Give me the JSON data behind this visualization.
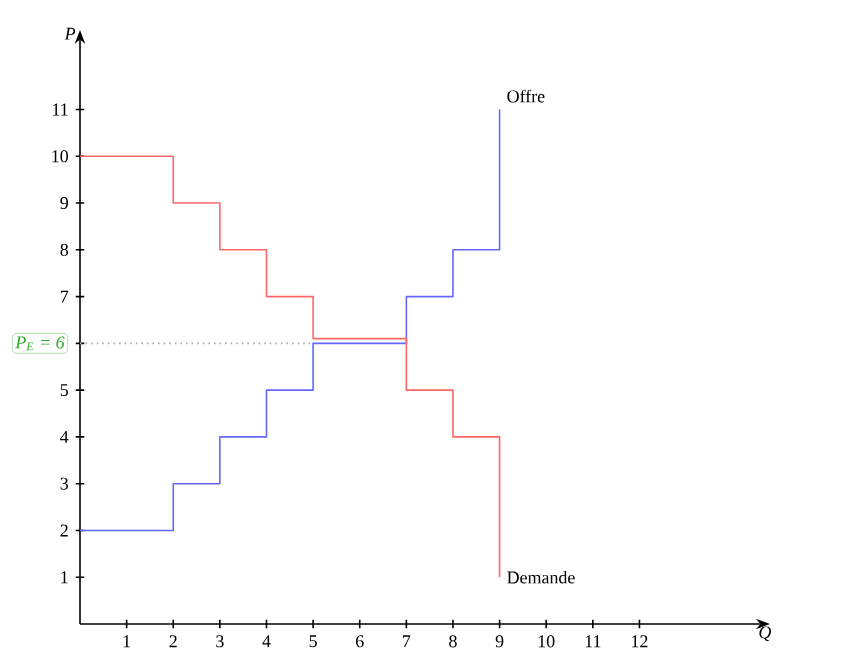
{
  "chart_data": {
    "type": "step",
    "xlabel": "Q",
    "ylabel": "P",
    "xlim": [
      0,
      14.5
    ],
    "ylim": [
      0,
      12.4
    ],
    "xticks": [
      1,
      2,
      3,
      4,
      5,
      6,
      7,
      8,
      9,
      10,
      11,
      12
    ],
    "yticks": [
      1,
      2,
      3,
      4,
      5,
      {
        "value": 6,
        "label": null
      },
      7,
      8,
      9,
      10,
      11
    ],
    "series": [
      {
        "name": "Offre",
        "color": "#6666ff",
        "x": [
          0,
          2,
          3,
          4,
          5,
          7,
          8,
          9
        ],
        "values": [
          2,
          3,
          4,
          5,
          6,
          7,
          8,
          11
        ]
      },
      {
        "name": "Demande",
        "color": "#ff6666",
        "x": [
          0,
          2,
          3,
          4,
          5,
          7,
          8,
          9
        ],
        "values": [
          10,
          9,
          8,
          7,
          6.1,
          5,
          4,
          1
        ]
      }
    ],
    "ref_lines": [
      {
        "axis": "y",
        "value": 6,
        "label": "P$_{E}$ = 6",
        "color": "#aaaaaa",
        "line_style": "dotted"
      }
    ]
  }
}
